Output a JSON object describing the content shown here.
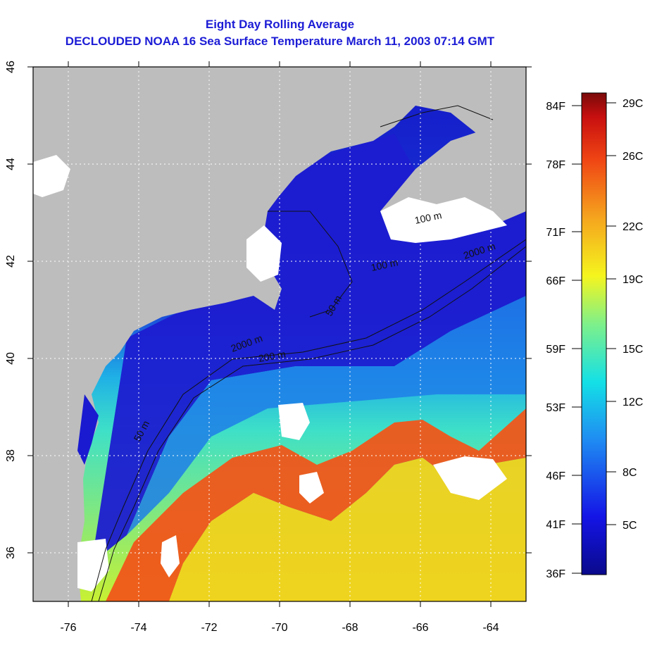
{
  "title": "Eight Day Rolling Average",
  "subtitle": "DECLOUDED NOAA 16 Sea Surface Temperature March 11, 2003 07:14 GMT",
  "map": {
    "lon_range": [
      -77,
      -63
    ],
    "lat_range": [
      35,
      46
    ],
    "x_ticks": [
      "-76",
      "-74",
      "-72",
      "-70",
      "-68",
      "-66",
      "-64"
    ],
    "y_ticks": [
      "36",
      "38",
      "40",
      "42",
      "44",
      "46"
    ],
    "grid": true,
    "colors": {
      "land": "#bdbdbd",
      "cloud_mask": "#ffffff",
      "cold_water": "#1418c8",
      "warm_water": "#f0561a"
    },
    "contour_labels": [
      "100 m",
      "2000 m",
      "100 m",
      "50 m",
      "2000 m",
      "200 m",
      "50 m"
    ]
  },
  "colorbar": {
    "fahrenheit": [
      "84F",
      "78F",
      "71F",
      "66F",
      "59F",
      "53F",
      "46F",
      "41F",
      "36F"
    ],
    "celsius": [
      "29C",
      "26C",
      "22C",
      "19C",
      "15C",
      "12C",
      "8C",
      "5C"
    ]
  }
}
